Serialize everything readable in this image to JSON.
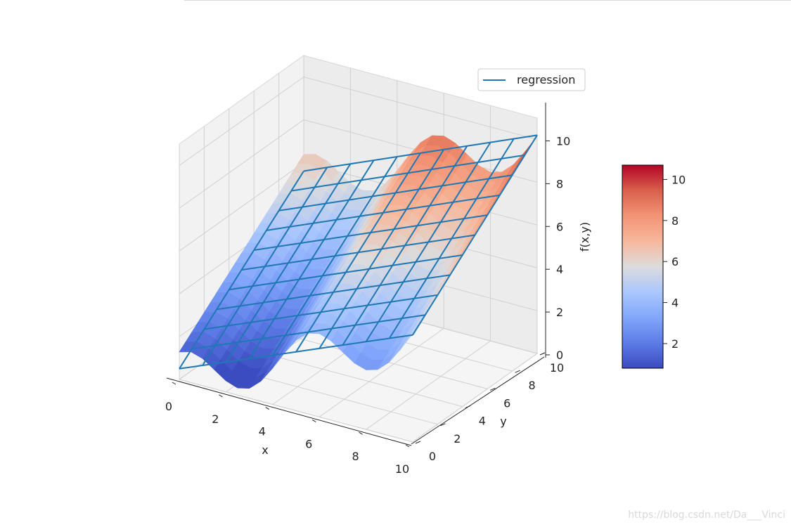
{
  "chart_data": {
    "type": "surface3d",
    "surface": {
      "function_desc": "f(x,y) = x - cos(x) + y/2 style wave (values 0..10)",
      "x_range": [
        0,
        10
      ],
      "y_range": [
        0,
        10
      ],
      "z_range": [
        0,
        11
      ],
      "colormap": "coolwarm"
    },
    "regression_plane": {
      "name": "regression",
      "color": "#1f77b4",
      "z_at_corners": {
        "x0y0": 0.5,
        "x10y0": 5.0,
        "x0y10": 5.6,
        "x10y10": 10.2
      }
    },
    "xlabel": "x",
    "ylabel": "y",
    "zlabel": "f(x,y)",
    "xticks": [
      "0",
      "2",
      "4",
      "6",
      "8",
      "10"
    ],
    "yticks": [
      "0",
      "2",
      "4",
      "6",
      "8",
      "10"
    ],
    "zticks": [
      "0",
      "2",
      "4",
      "6",
      "8",
      "10"
    ],
    "colorbar_ticks": [
      "2",
      "4",
      "6",
      "8",
      "10"
    ],
    "colorbar_range": [
      0.8,
      10.7
    ],
    "legend": [
      "regression"
    ],
    "legend_position": "top-right"
  },
  "watermark": "https://blog.csdn.net/Da___Vinci"
}
